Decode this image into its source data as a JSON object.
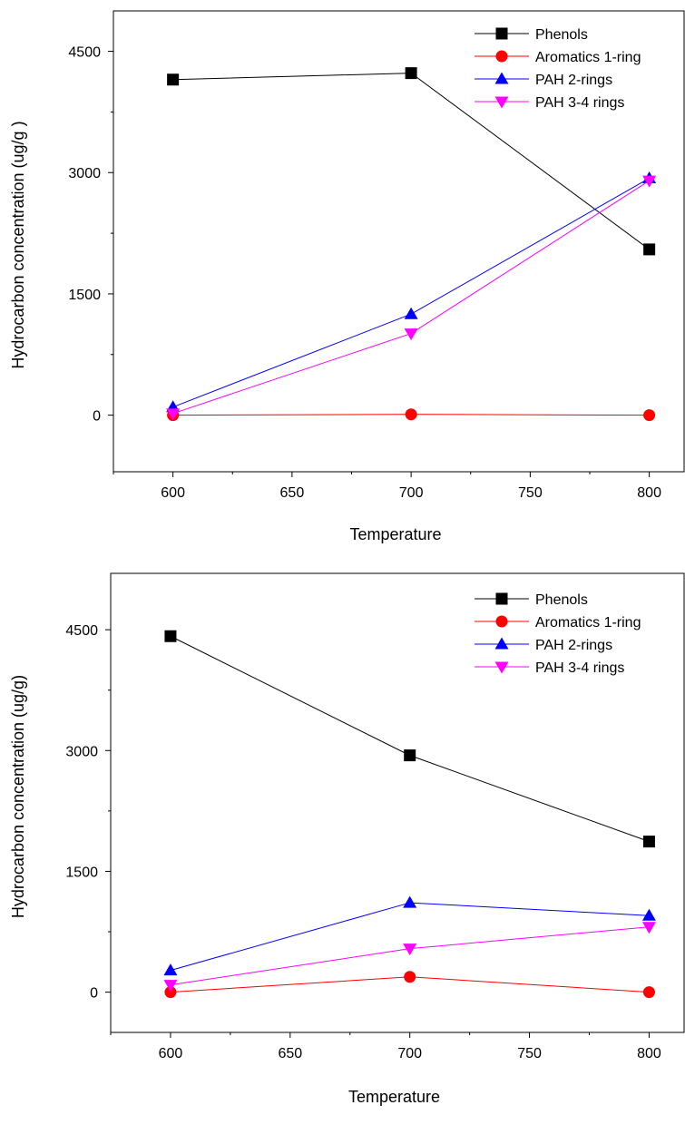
{
  "chart_data": [
    {
      "type": "line",
      "title": "",
      "xlabel": "Temperature",
      "ylabel": "Hydrocarbon concentration  (ug/g )",
      "xlim": [
        575,
        815
      ],
      "ylim": [
        -700,
        5000
      ],
      "x": [
        600,
        700,
        800
      ],
      "x_ticks": [
        600,
        650,
        700,
        750,
        800
      ],
      "y_ticks": [
        0,
        1500,
        3000,
        4500
      ],
      "legend_position": "top-right",
      "series": [
        {
          "name": "Phenols",
          "marker": "square",
          "color": "#000000",
          "values": [
            4150,
            4230,
            2050
          ]
        },
        {
          "name": "Aromatics 1-ring",
          "marker": "circle",
          "color": "#ff0000",
          "values": [
            0,
            10,
            0
          ]
        },
        {
          "name": "PAH 2-rings",
          "marker": "triangle-up",
          "color": "#0000ff",
          "values": [
            100,
            1250,
            2930
          ]
        },
        {
          "name": "PAH 3-4 rings",
          "marker": "triangle-down",
          "color": "#ff00ff",
          "values": [
            20,
            1010,
            2900
          ]
        }
      ]
    },
    {
      "type": "line",
      "title": "",
      "xlabel": "Temperature",
      "ylabel": "Hydrocarbon concentration (ug/g)",
      "xlim": [
        575,
        815
      ],
      "ylim": [
        -500,
        5200
      ],
      "x": [
        600,
        700,
        800
      ],
      "x_ticks": [
        600,
        650,
        700,
        750,
        800
      ],
      "y_ticks": [
        0,
        1500,
        3000,
        4500
      ],
      "legend_position": "top-right",
      "series": [
        {
          "name": "Phenols",
          "marker": "square",
          "color": "#000000",
          "values": [
            4420,
            2940,
            1870
          ]
        },
        {
          "name": "Aromatics 1-ring",
          "marker": "circle",
          "color": "#ff0000",
          "values": [
            0,
            190,
            0
          ]
        },
        {
          "name": "PAH 2-rings",
          "marker": "triangle-up",
          "color": "#0000ff",
          "values": [
            270,
            1110,
            950
          ]
        },
        {
          "name": "PAH 3-4 rings",
          "marker": "triangle-down",
          "color": "#ff00ff",
          "values": [
            90,
            540,
            810
          ]
        }
      ]
    }
  ]
}
